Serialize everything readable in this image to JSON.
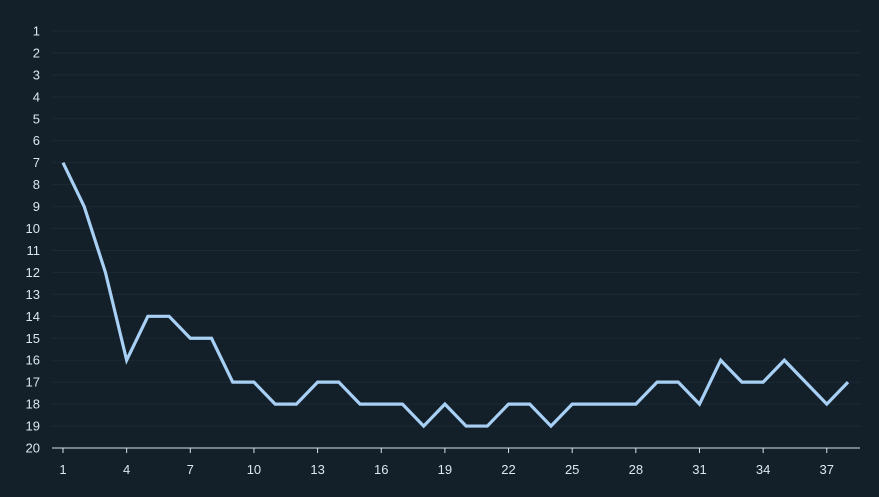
{
  "chart_data": {
    "type": "line",
    "title": "",
    "xlabel": "",
    "ylabel": "",
    "x": [
      1,
      2,
      3,
      4,
      5,
      6,
      7,
      8,
      9,
      10,
      11,
      12,
      13,
      14,
      15,
      16,
      17,
      18,
      19,
      20,
      21,
      22,
      23,
      24,
      25,
      26,
      27,
      28,
      29,
      30,
      31,
      32,
      33,
      34,
      35,
      36,
      37,
      38
    ],
    "x_ticks": [
      1,
      4,
      7,
      10,
      13,
      16,
      19,
      22,
      25,
      28,
      31,
      34,
      37
    ],
    "y_ticks": [
      1,
      2,
      3,
      4,
      5,
      6,
      7,
      8,
      9,
      10,
      11,
      12,
      13,
      14,
      15,
      16,
      17,
      18,
      19,
      20
    ],
    "ylim": [
      1,
      20
    ],
    "y_inverted": true,
    "grid": true,
    "legend": "none",
    "series": [
      {
        "values": [
          7,
          9,
          12,
          16,
          14,
          14,
          15,
          15,
          17,
          17,
          18,
          18,
          17,
          17,
          18,
          18,
          18,
          19,
          18,
          19,
          19,
          18,
          18,
          19,
          18,
          18,
          18,
          18,
          17,
          17,
          18,
          16,
          17,
          17,
          16,
          17,
          18,
          17
        ],
        "color": "#a8d0f5"
      }
    ]
  },
  "colors": {
    "background": "#131f29",
    "grid": "#1c2a35",
    "axis": "#d8e3ea",
    "text": "#dbe7f0"
  }
}
